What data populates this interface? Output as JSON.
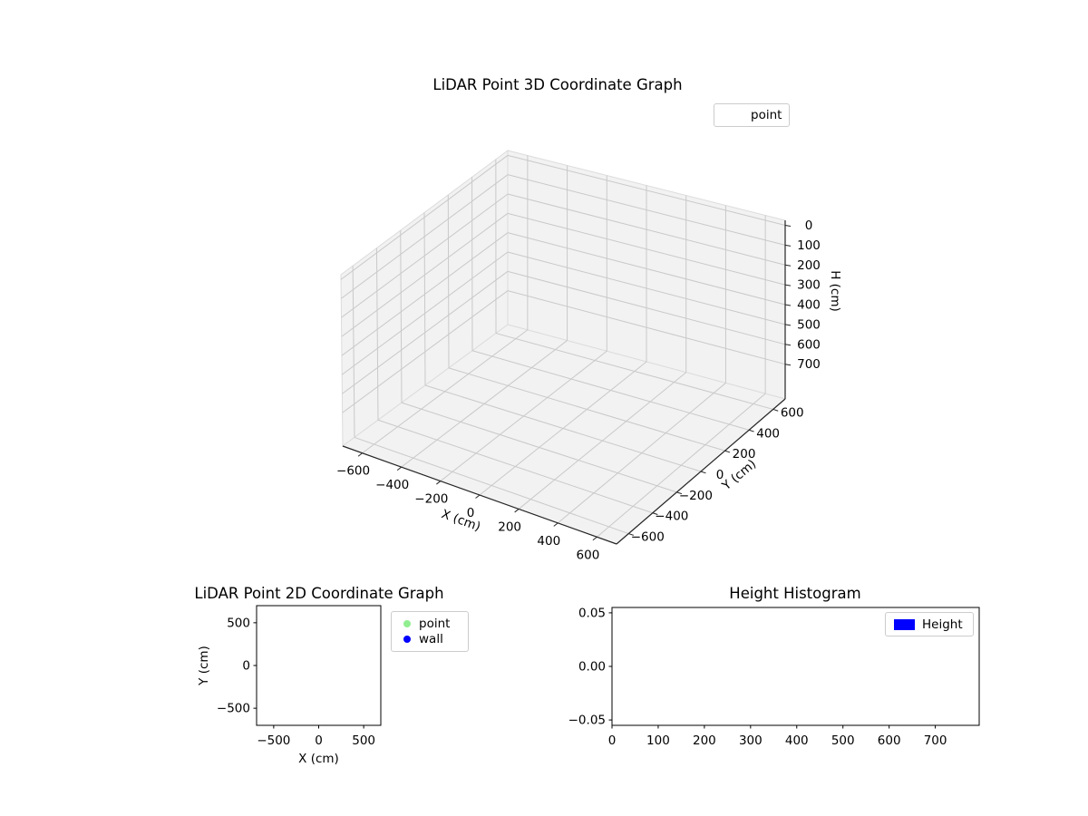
{
  "figure": {
    "background": "#ffffff"
  },
  "chart_data": [
    {
      "id": "lidar-3d",
      "type": "scatter",
      "projection": "3d",
      "title": "LiDAR Point 3D Coordinate Graph",
      "xlabel": "X (cm)",
      "ylabel": "Y (cm)",
      "zlabel": "H (cm)",
      "xlim": [
        -700,
        700
      ],
      "ylim": [
        -700,
        700
      ],
      "zlim": [
        -25,
        875
      ],
      "zaxis_inverted": true,
      "grid": true,
      "xticks": [
        -600,
        -400,
        -200,
        0,
        200,
        400,
        600
      ],
      "xtick_labels": [
        "−600",
        "−400",
        "−200",
        "0",
        "200",
        "400",
        "600"
      ],
      "yticks": [
        -600,
        -400,
        -200,
        0,
        200,
        400,
        600
      ],
      "ytick_labels": [
        "−600",
        "−400",
        "−200",
        "0",
        "200",
        "400",
        "600"
      ],
      "zticks": [
        0,
        100,
        200,
        300,
        400,
        500,
        600,
        700
      ],
      "ztick_labels": [
        "0",
        "100",
        "200",
        "300",
        "400",
        "500",
        "600",
        "700"
      ],
      "legend": [
        {
          "label": "point",
          "marker": "none"
        }
      ],
      "legend_position": "upper right (outside axes)",
      "series": [
        {
          "name": "point",
          "x": [],
          "y": [],
          "z": []
        }
      ]
    },
    {
      "id": "lidar-2d",
      "type": "scatter",
      "title": "LiDAR Point 2D Coordinate Graph",
      "xlabel": "X (cm)",
      "ylabel": "Y (cm)",
      "xlim": [
        -690,
        690
      ],
      "ylim": [
        -700,
        700
      ],
      "grid": false,
      "xticks": [
        -500,
        0,
        500
      ],
      "xtick_labels": [
        "−500",
        "0",
        "500"
      ],
      "yticks": [
        500,
        0,
        -500
      ],
      "ytick_labels": [
        "500",
        "0",
        "−500"
      ],
      "legend": [
        {
          "label": "point",
          "marker": "circle",
          "color": "#90ee90"
        },
        {
          "label": "wall",
          "marker": "circle",
          "color": "#0000ff"
        }
      ],
      "legend_position": "outside right",
      "series": [
        {
          "name": "point",
          "x": [],
          "y": []
        },
        {
          "name": "wall",
          "x": [],
          "y": []
        }
      ]
    },
    {
      "id": "height-histogram",
      "type": "bar",
      "title": "Height Histogram",
      "xlabel": "",
      "ylabel": "",
      "xlim": [
        0,
        795
      ],
      "ylim": [
        -0.055,
        0.055
      ],
      "grid": false,
      "xticks": [
        0,
        100,
        200,
        300,
        400,
        500,
        600,
        700
      ],
      "xtick_labels": [
        "0",
        "100",
        "200",
        "300",
        "400",
        "500",
        "600",
        "700"
      ],
      "yticks": [
        0.05,
        0.0,
        -0.05
      ],
      "ytick_labels": [
        "0.05",
        "0.00",
        "−0.05"
      ],
      "legend": [
        {
          "label": "Height",
          "marker": "rect",
          "color": "#0000ff"
        }
      ],
      "legend_position": "upper right (inside axes)",
      "categories": [],
      "values": []
    }
  ],
  "style": {
    "pane_color": "#f2f2f2",
    "pane_edge_color": "#dcdcdc",
    "grid_color": "#c9c9c9",
    "axis_line_color": "#262626",
    "spine_color": "#000000",
    "legend_border_color": "#cccccc"
  }
}
